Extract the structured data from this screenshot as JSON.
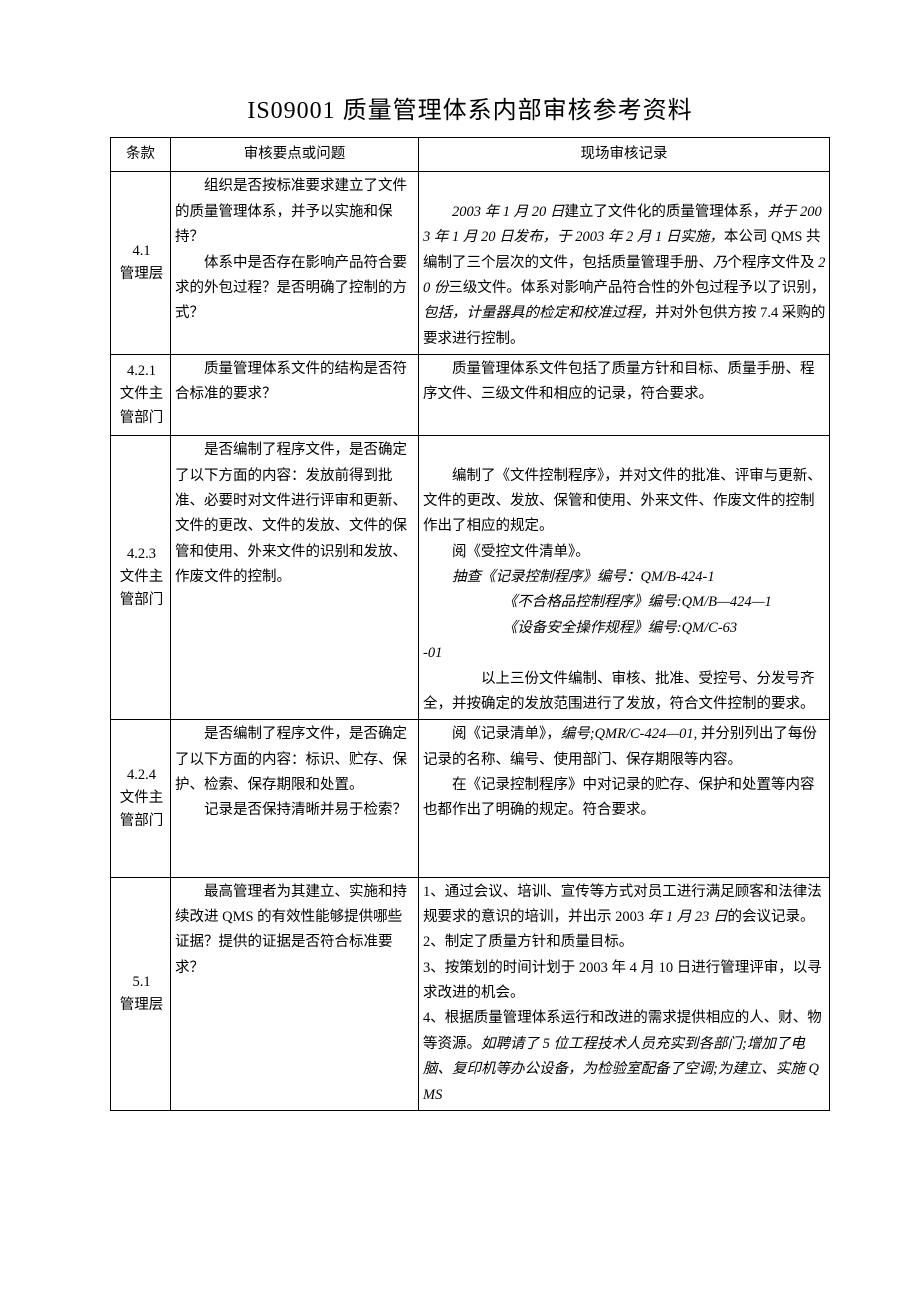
{
  "title": "IS09001 质量管理体系内部审核参考资料",
  "header": {
    "clause": "条款",
    "points": "审核要点或问题",
    "record": "现场审核记录"
  },
  "rows": [
    {
      "clause": "4.1\n管理层",
      "points": "　　组织是否按标准要求建立了文件的质量管理体系，并予以实施和保持？\n　　体系中是否存在影响产品符合要求的外包过程？是否明确了控制的方式？",
      "record_html": "<br><span class='indent'></span><span class='italic'>2003 年 1 月 20 日</span>建立了文件化的质量管理体系，<span class='italic'>并于 2003 年 1 月 20 日发布，于 2003 年 2 月 1 日实施，</span>本公司 QMS 共编制了三个层次的文件，包括质量管理手册、<span class='italic'>乃</span>个程序文件及 <span class='italic'>20 份</span>三级文件。体系对影响产品符合性的外包过程予以了识别，<span class='italic'>包括，计量器具的检定和校准过程，</span>并对外包供方按 7.4 采购的要求进行控制。"
    },
    {
      "clause": "4.2.1\n文件主管部门",
      "points": "　　质量管理体系文件的结构是否符合标准的要求？",
      "record_html": "<span class='indent'></span>质量管理体系文件包括了质量方针和目标、质量手册、程序文件、三级文件和相应的记录，符合要求。<br><br>"
    },
    {
      "clause": "4.2.3\n文件主管部门",
      "points": "　　是否编制了程序文件，是否确定了以下方面的内容：发放前得到批准、必要时对文件进行评审和更新、文件的更改、文件的发放、文件的保管和使用、外来文件的识别和发放、作废文件的控制。",
      "record_html": "<br><span class='indent'></span>编制了《文件控制程序》，并对文件的批准、评审与更新、文件的更改、发放、保管和使用、外来文件、作废文件的控制作出了相应的规定。<br><span class='indent'></span>阅《受控文件清单》。<br><span class='indent'></span><span class='italic'>抽查《记录控制程序》编号：QM/B-424-1</span><br><span class='indent'></span><span class='indent'></span>　　<span class='italic'>《不合格品控制程序》编号:QM/B—424—1</span><br><span class='indent'></span><span class='indent'></span>　　<span class='italic'>《设备安全操作规程》编号:QM/C-63</span><br><span class='italic'>-01</span><br><span class='indent'></span><span class='indent'></span>以上三份文件编制、审核、批准、受控号、分发号齐全，并按确定的发放范围进行了发放，符合文件控制的要求。"
    },
    {
      "clause": "4.2.4\n文件主管部门",
      "points": "　　是否编制了程序文件，是否确定了以下方面的内容：标识、贮存、保护、检索、保存期限和处置。\n　　记录是否保持清晰并易于检索？",
      "record_html": "<span class='indent'></span>阅《记录清单》，<span class='italic'>编号;QMR/C-424—01,</span> 并分别列出了每份记录的名称、编号、使用部门、保存期限等内容。<br><span class='indent'></span>在《记录控制程序》中对记录的贮存、保护和处置等内容也都作出了明确的规定。符合要求。<br><br><br>"
    },
    {
      "clause": "5.1\n管理层",
      "points": "　　最高管理者为其建立、实施和持续改进 QMS 的有效性能够提供哪些证据？提供的证据是否符合标准要求？",
      "record_html": "1、通过会议、培训、宣传等方式对员工进行满足顾客和法律法规要求的意识的培训，并出示 2003 <span class='italic'>年 1 月 23 日</span>的会议记录。<br>2、制定了质量方针和质量目标。<br>3、按策划的时间计划于 2003 年 4 月 10 日进行管理评审，以寻求改进的机会。<br>4、根据质量管理体系运行和改进的需求提供相应的人、财、物等资源。<span class='italic'>如聘请了 5 位工程技术人员充实到各部门;增加了电脑、复印机等办公设备，为检验室配备了空调;为建立、实施 QMS</span>"
    }
  ]
}
